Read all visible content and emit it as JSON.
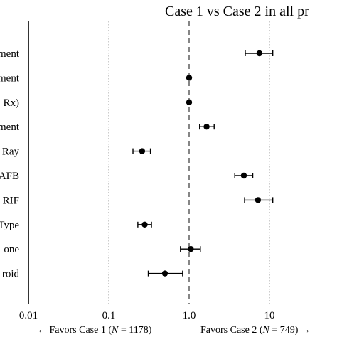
{
  "chart_data": {
    "type": "scatter",
    "subtype": "forest-plot",
    "title": "Case 1 vs Case 2 in all pr",
    "x_scale": "log",
    "xlim": [
      0.01,
      20
    ],
    "x_ticks": [
      0.01,
      0.1,
      1,
      10
    ],
    "x_tick_labels": [
      "0.01",
      "0.1",
      "1.0",
      "10"
    ],
    "gridlines_dotted_at": [
      0.1,
      10
    ],
    "reference_line_dashed_at": 1,
    "rows": [
      {
        "label": "ment",
        "estimate": 7.5,
        "lower": 5.0,
        "upper": 11.0
      },
      {
        "label": "ment",
        "estimate": 1.0,
        "lower": 1.0,
        "upper": 1.0
      },
      {
        "label": "Rx)",
        "estimate": 1.0,
        "lower": 1.0,
        "upper": 1.0
      },
      {
        "label": "ment",
        "estimate": 1.65,
        "lower": 1.35,
        "upper": 2.05
      },
      {
        "label": "Ray",
        "estimate": 0.26,
        "lower": 0.2,
        "upper": 0.33
      },
      {
        "label": "AFB",
        "estimate": 4.8,
        "lower": 3.7,
        "upper": 6.2
      },
      {
        "label": "RIF",
        "estimate": 7.2,
        "lower": 4.9,
        "upper": 11.0
      },
      {
        "label": "Type",
        "estimate": 0.28,
        "lower": 0.23,
        "upper": 0.34
      },
      {
        "label": "one",
        "estimate": 1.05,
        "lower": 0.78,
        "upper": 1.38
      },
      {
        "label": "roid",
        "estimate": 0.5,
        "lower": 0.31,
        "upper": 0.83
      }
    ],
    "favors_left": "← Favors Case 1 (",
    "favors_left_n": "N",
    "favors_left_value": " = 1178)",
    "favors_right": "Favors Case 2 (",
    "favors_right_n": "N",
    "favors_right_value": " = 749) →"
  }
}
